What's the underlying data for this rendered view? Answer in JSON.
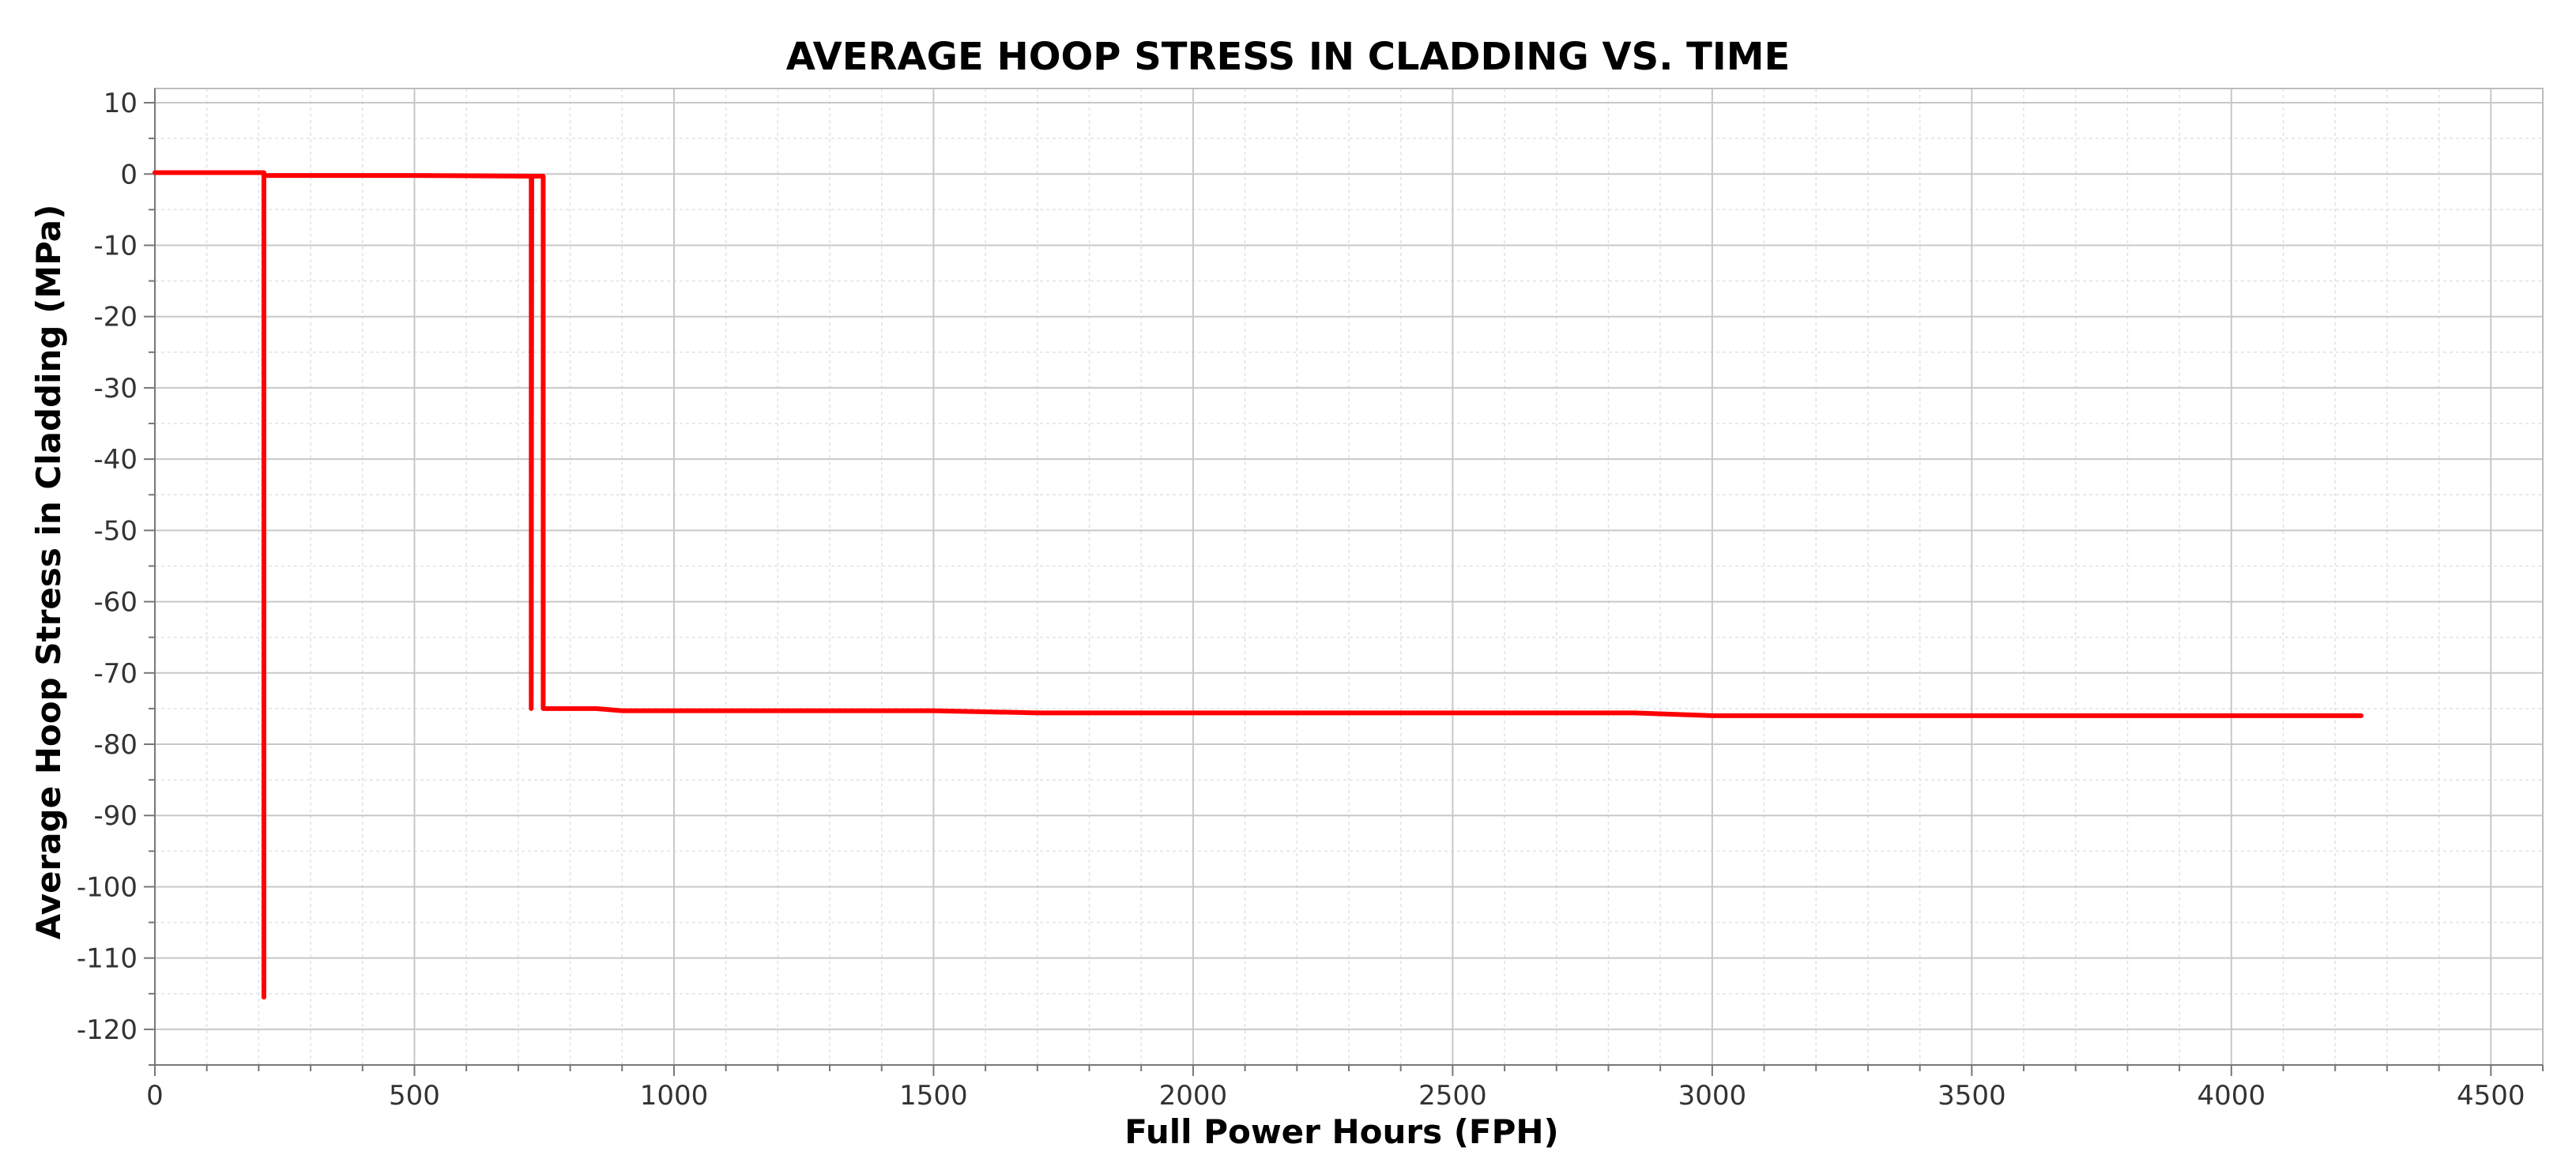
{
  "chart_data": {
    "type": "line",
    "title": "AVERAGE HOOP STRESS IN CLADDING VS. TIME",
    "xlabel": "Full Power Hours (FPH)",
    "ylabel": "Average Hoop Stress in Cladding (MPa)",
    "xlim": [
      0,
      4600
    ],
    "ylim": [
      -125,
      12
    ],
    "x_ticks": [
      0,
      500,
      1000,
      1500,
      2000,
      2500,
      3000,
      3500,
      4000,
      4500
    ],
    "x_tick_labels": [
      "0",
      "500",
      "1000",
      "1500",
      "2000",
      "2500",
      "3000",
      "3500",
      "4000",
      "4500"
    ],
    "y_ticks": [
      10,
      0,
      -10,
      -20,
      -30,
      -40,
      -50,
      -60,
      -70,
      -80,
      -90,
      -100,
      -110,
      -120
    ],
    "y_tick_labels": [
      "10",
      "0",
      "-10",
      "-20",
      "-30",
      "-40",
      "-50",
      "-60",
      "-70",
      "-80",
      "-90",
      "-100",
      "-110",
      "-120"
    ],
    "x_minor_step": 100,
    "y_minor_step": 5,
    "grid": true,
    "legend": false,
    "series": [
      {
        "color": "#ff0000",
        "points": [
          [
            0,
            0.2
          ],
          [
            200,
            0.2
          ],
          [
            210,
            0.2
          ],
          [
            210,
            -115.5
          ],
          [
            210,
            -0.2
          ],
          [
            500,
            -0.2
          ],
          [
            725,
            -0.3
          ],
          [
            725,
            -75
          ],
          [
            726,
            -0.3
          ],
          [
            745,
            -0.3
          ],
          [
            748,
            -0.3
          ],
          [
            748,
            -75
          ],
          [
            850,
            -75
          ],
          [
            900,
            -75.3
          ],
          [
            1500,
            -75.3
          ],
          [
            1700,
            -75.6
          ],
          [
            2000,
            -75.6
          ],
          [
            2850,
            -75.6
          ],
          [
            3000,
            -76
          ],
          [
            4250,
            -76
          ]
        ]
      }
    ]
  }
}
